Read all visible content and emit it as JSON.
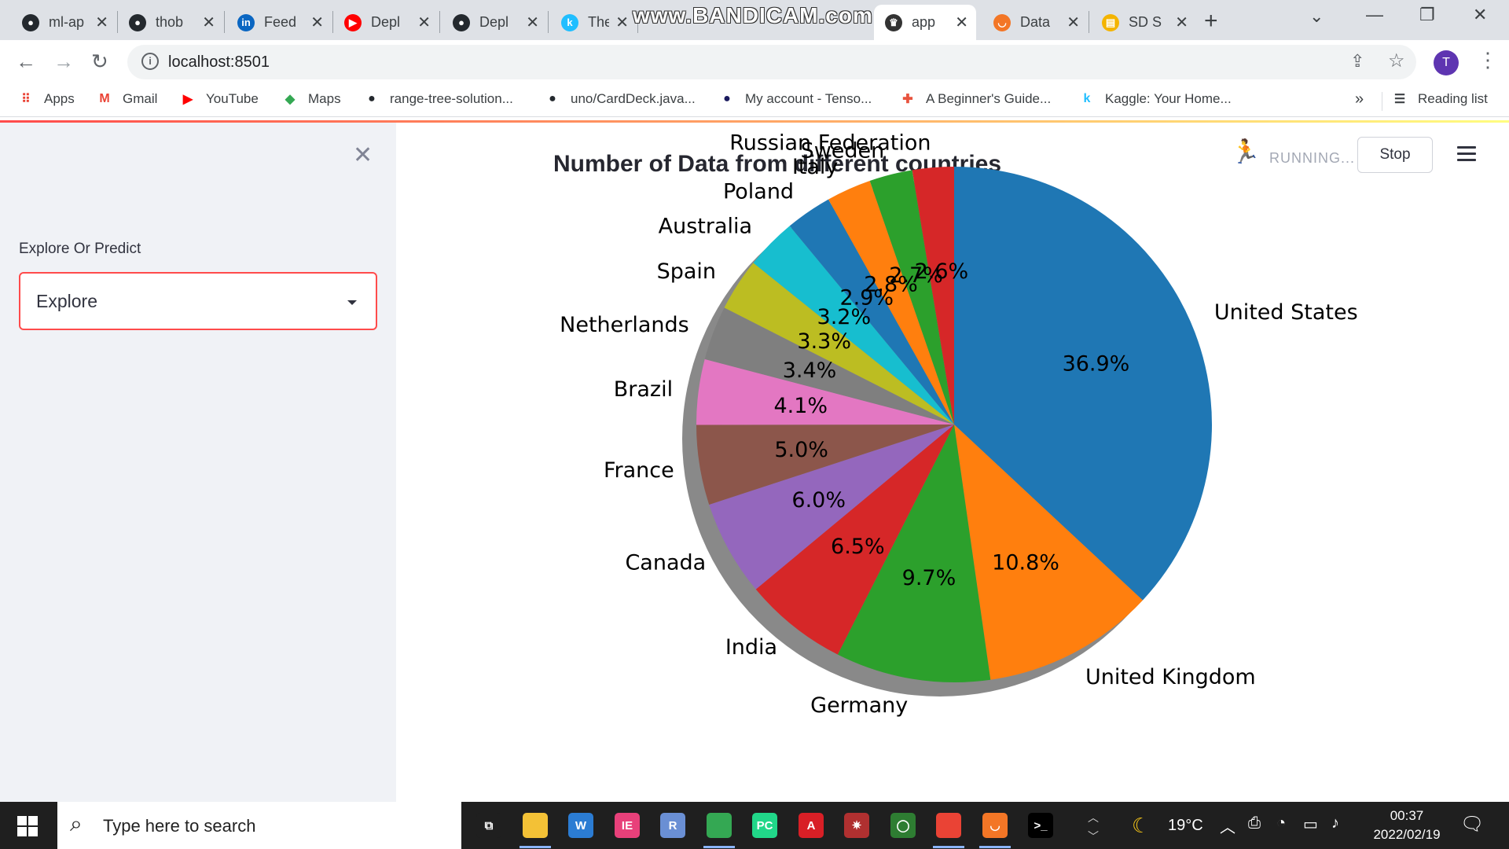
{
  "browser": {
    "watermark": "www.BANDICAM.com",
    "tabs": [
      {
        "label": "ml-ap",
        "icon": "github-icon",
        "color": "#24292e"
      },
      {
        "label": "thob",
        "icon": "github-icon",
        "color": "#24292e"
      },
      {
        "label": "Feed",
        "icon": "linkedin-icon",
        "color": "#0a66c2"
      },
      {
        "label": "Depl",
        "icon": "youtube-icon",
        "color": "#ff0000"
      },
      {
        "label": "Depl",
        "icon": "github-icon",
        "color": "#24292e"
      },
      {
        "label": "The S",
        "icon": "kaggle-icon",
        "color": "#20beff"
      },
      {
        "label": "app",
        "icon": "streamlit-icon",
        "color": "#333333"
      },
      {
        "label": "Data",
        "icon": "jupyter-icon",
        "color": "#f37626"
      },
      {
        "label": "SD S",
        "icon": "slides-icon",
        "color": "#f4b400"
      }
    ],
    "url": "localhost:8501",
    "profile_initial": "T",
    "bookmarks": [
      {
        "label": "Apps",
        "icon": "apps-grid-icon"
      },
      {
        "label": "Gmail",
        "icon": "gmail-icon"
      },
      {
        "label": "YouTube",
        "icon": "youtube-icon"
      },
      {
        "label": "Maps",
        "icon": "maps-icon"
      },
      {
        "label": "range-tree-solution...",
        "icon": "github-icon"
      },
      {
        "label": "uno/CardDeck.java...",
        "icon": "github-icon"
      },
      {
        "label": "My account - Tenso...",
        "icon": "tensor-icon"
      },
      {
        "label": "A Beginner's Guide...",
        "icon": "guide-icon"
      },
      {
        "label": "Kaggle: Your Home...",
        "icon": "kaggle-icon"
      }
    ],
    "bookmarks_more": "»",
    "reading_list": "Reading list"
  },
  "app": {
    "sidebar": {
      "label": "Explore Or Predict",
      "selected": "Explore"
    },
    "status": "RUNNING...",
    "stop_label": "Stop"
  },
  "chart_data": {
    "type": "pie",
    "title": "Number of Data from different countries",
    "shadow": true,
    "start_angle_deg": 90,
    "direction": "clockwise",
    "slices": [
      {
        "label": "United States",
        "value": 36.9,
        "color": "#1f77b4"
      },
      {
        "label": "United Kingdom",
        "value": 10.8,
        "color": "#ff7f0e"
      },
      {
        "label": "Germany",
        "value": 9.7,
        "color": "#2ca02c"
      },
      {
        "label": "India",
        "value": 6.5,
        "color": "#d62728"
      },
      {
        "label": "Canada",
        "value": 6.0,
        "color": "#9467bd"
      },
      {
        "label": "France",
        "value": 5.0,
        "color": "#8c564b"
      },
      {
        "label": "Brazil",
        "value": 4.1,
        "color": "#e377c2"
      },
      {
        "label": "Netherlands",
        "value": 3.4,
        "color": "#7f7f7f"
      },
      {
        "label": "Spain",
        "value": 3.3,
        "color": "#bcbd22"
      },
      {
        "label": "Australia",
        "value": 3.2,
        "color": "#17becf"
      },
      {
        "label": "Poland",
        "value": 2.9,
        "color": "#1f77b4"
      },
      {
        "label": "Italy",
        "value": 2.8,
        "color": "#ff7f0e"
      },
      {
        "label": "Sweden",
        "value": 2.7,
        "color": "#2ca02c"
      },
      {
        "label": "Russian Federation",
        "value": 2.6,
        "color": "#d62728"
      }
    ]
  },
  "taskbar": {
    "search_placeholder": "Type here to search",
    "apps": [
      {
        "name": "task-view-icon",
        "text": "⧉",
        "color": "#1f1f1f"
      },
      {
        "name": "file-explorer-icon",
        "text": "",
        "color": "#f3c136"
      },
      {
        "name": "app-w-icon",
        "text": "W",
        "color": "#2b7cd3"
      },
      {
        "name": "intellij-icon",
        "text": "IE",
        "color": "#e8407a"
      },
      {
        "name": "r-icon",
        "text": "R",
        "color": "#6a8fd4"
      },
      {
        "name": "chrome-icon",
        "text": "",
        "color": "#34a853"
      },
      {
        "name": "pycharm-icon",
        "text": "PC",
        "color": "#21d789"
      },
      {
        "name": "acrobat-icon",
        "text": "A",
        "color": "#d81f26"
      },
      {
        "name": "network-app-icon",
        "text": "✷",
        "color": "#b03030"
      },
      {
        "name": "circle-app-icon",
        "text": "◯",
        "color": "#2e7d32"
      },
      {
        "name": "chrome-active-icon",
        "text": "",
        "color": "#ea4335"
      },
      {
        "name": "jupyter-taskbar-icon",
        "text": "◡",
        "color": "#f37626"
      },
      {
        "name": "terminal-icon",
        "text": ">_",
        "color": "#000000"
      }
    ],
    "weather": "19°C",
    "time": "00:37",
    "date": "2022/02/19"
  }
}
